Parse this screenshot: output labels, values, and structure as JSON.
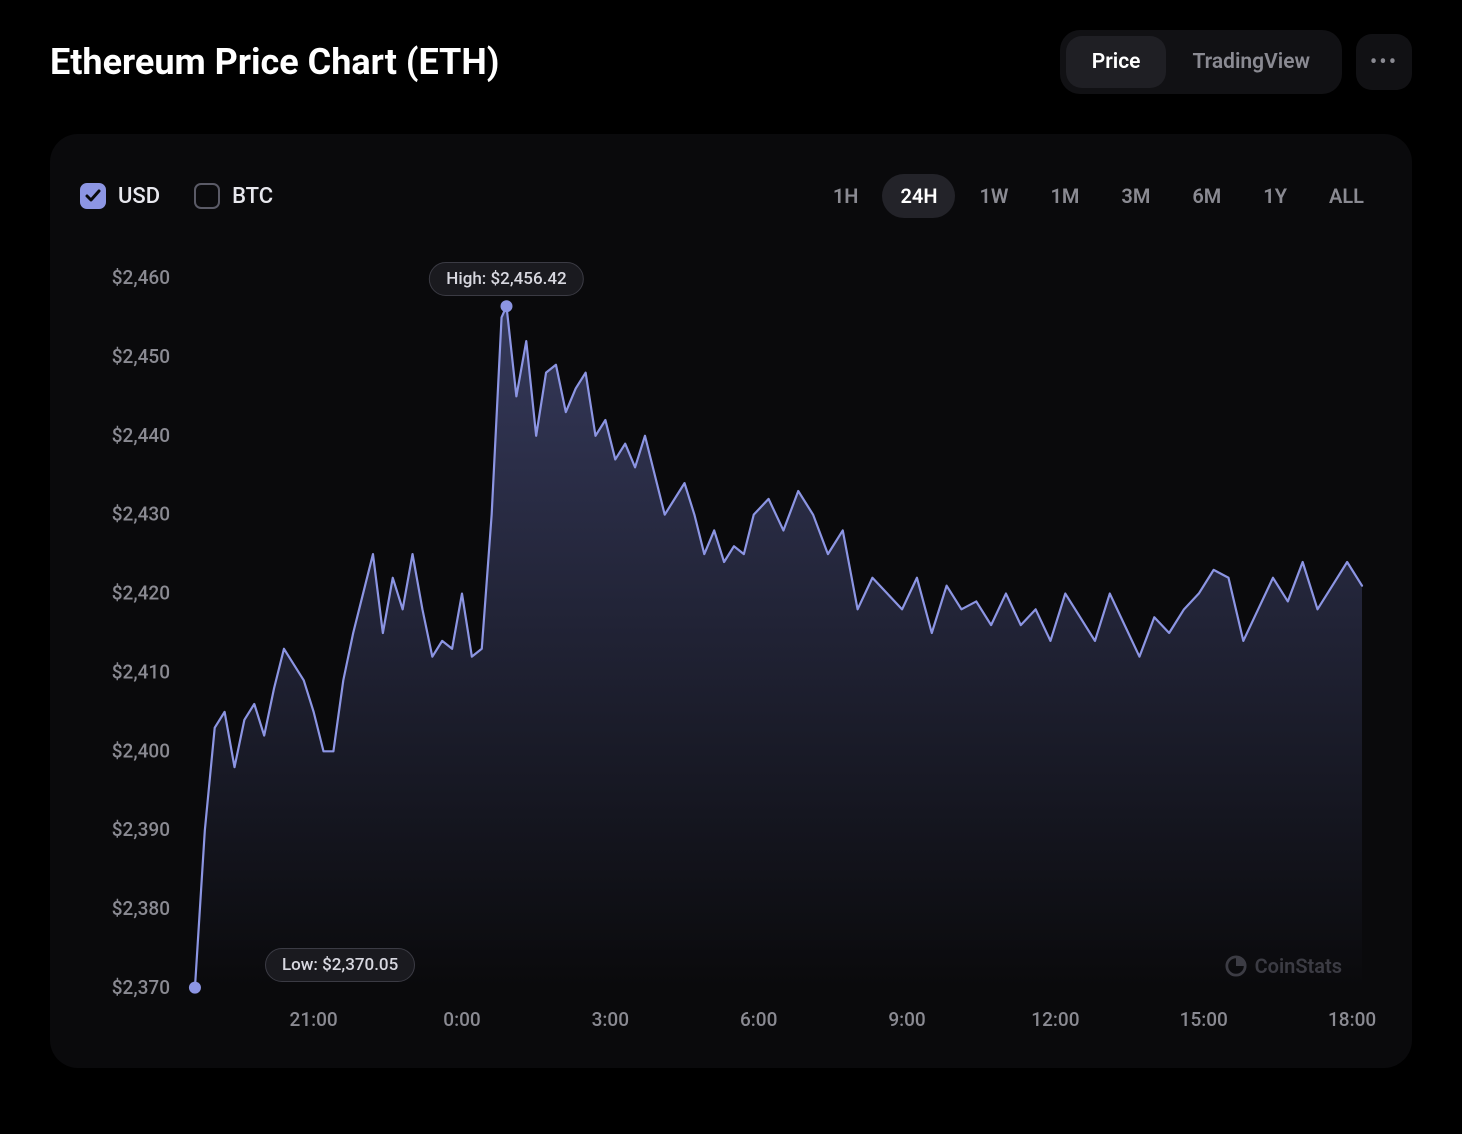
{
  "title": "Ethereum Price Chart (ETH)",
  "header_tabs": {
    "price": "Price",
    "tradingview": "TradingView",
    "active": "price"
  },
  "currencies": {
    "usd": {
      "label": "USD",
      "checked": true
    },
    "btc": {
      "label": "BTC",
      "checked": false
    }
  },
  "ranges": {
    "items": [
      "1H",
      "24H",
      "1W",
      "1M",
      "3M",
      "6M",
      "1Y",
      "ALL"
    ],
    "active": "24H"
  },
  "watermark": "CoinStats",
  "chart": {
    "type": "area-line",
    "line_color": "#8c95e3",
    "line_width": 2.2,
    "fill_top_color": "#585f9a",
    "fill_bottom_color": "rgba(88,95,154,0)",
    "fill_opacity": 0.55,
    "background_color": "#0a0a0c",
    "dot_color": "#8c95e3",
    "tooltip_bg": "#1a1a1f",
    "tooltip_border": "#3b3b44",
    "tooltip_text_color": "#d8d8e0",
    "axis_text_color": "#8a8a92",
    "axis_fontsize": 19,
    "y": {
      "min": 2370,
      "max": 2460,
      "tick_step": 10,
      "labels": [
        "$2,370",
        "$2,380",
        "$2,390",
        "$2,400",
        "$2,410",
        "$2,420",
        "$2,430",
        "$2,440",
        "$2,450",
        "$2,460"
      ]
    },
    "x": {
      "labels": [
        "21:00",
        "0:00",
        "3:00",
        "6:00",
        "9:00",
        "12:00",
        "15:00",
        "18:00"
      ],
      "label_positions_hours": [
        21,
        24,
        27,
        30,
        33,
        36,
        39,
        42
      ],
      "range_hours": [
        18.5,
        42.2
      ]
    },
    "high": {
      "label": "High: $2,456.42",
      "hour": 24.9,
      "value": 2456.42
    },
    "low": {
      "label": "Low: $2,370.05",
      "hour": 18.6,
      "value": 2370.05
    },
    "series_hours": [
      18.6,
      18.8,
      19.0,
      19.2,
      19.4,
      19.6,
      19.8,
      20.0,
      20.2,
      20.4,
      20.6,
      20.8,
      21.0,
      21.2,
      21.4,
      21.6,
      21.8,
      22.0,
      22.2,
      22.4,
      22.6,
      22.8,
      23.0,
      23.2,
      23.4,
      23.6,
      23.8,
      24.0,
      24.2,
      24.4,
      24.6,
      24.8,
      24.9,
      25.1,
      25.3,
      25.5,
      25.7,
      25.9,
      26.1,
      26.3,
      26.5,
      26.7,
      26.9,
      27.1,
      27.3,
      27.5,
      27.7,
      27.9,
      28.1,
      28.3,
      28.5,
      28.7,
      28.9,
      29.1,
      29.3,
      29.5,
      29.7,
      29.9,
      30.2,
      30.5,
      30.8,
      31.1,
      31.4,
      31.7,
      32.0,
      32.3,
      32.6,
      32.9,
      33.2,
      33.5,
      33.8,
      34.1,
      34.4,
      34.7,
      35.0,
      35.3,
      35.6,
      35.9,
      36.2,
      36.5,
      36.8,
      37.1,
      37.4,
      37.7,
      38.0,
      38.3,
      38.6,
      38.9,
      39.2,
      39.5,
      39.8,
      40.1,
      40.4,
      40.7,
      41.0,
      41.3,
      41.6,
      41.9,
      42.2
    ],
    "series_values": [
      2370.05,
      2390,
      2403,
      2405,
      2398,
      2404,
      2406,
      2402,
      2408,
      2413,
      2411,
      2409,
      2405,
      2400,
      2400,
      2409,
      2415,
      2420,
      2425,
      2415,
      2422,
      2418,
      2425,
      2418,
      2412,
      2414,
      2413,
      2420,
      2412,
      2413,
      2430,
      2455,
      2456.42,
      2445,
      2452,
      2440,
      2448,
      2449,
      2443,
      2446,
      2448,
      2440,
      2442,
      2437,
      2439,
      2436,
      2440,
      2435,
      2430,
      2432,
      2434,
      2430,
      2425,
      2428,
      2424,
      2426,
      2425,
      2430,
      2432,
      2428,
      2433,
      2430,
      2425,
      2428,
      2418,
      2422,
      2420,
      2418,
      2422,
      2415,
      2421,
      2418,
      2419,
      2416,
      2420,
      2416,
      2418,
      2414,
      2420,
      2417,
      2414,
      2420,
      2416,
      2412,
      2417,
      2415,
      2418,
      2420,
      2423,
      2422,
      2414,
      2418,
      2422,
      2419,
      2424,
      2418,
      2421,
      2424,
      2421
    ]
  }
}
